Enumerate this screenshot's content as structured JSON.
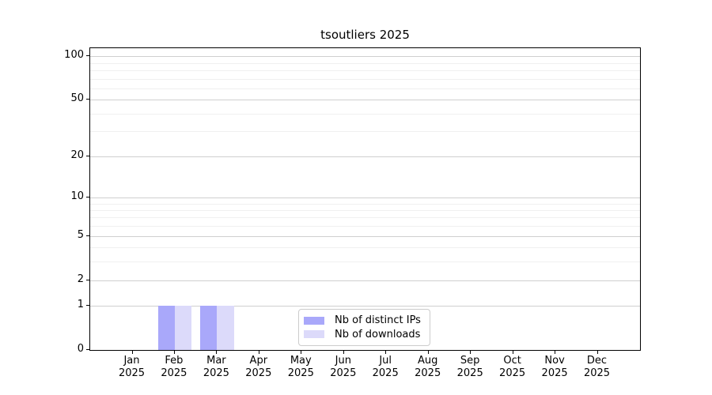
{
  "title": "tsoutliers 2025",
  "chart_data": {
    "type": "bar",
    "title": "tsoutliers 2025",
    "x_categories": [
      "Jan",
      "Feb",
      "Mar",
      "Apr",
      "May",
      "Jun",
      "Jul",
      "Aug",
      "Sep",
      "Oct",
      "Nov",
      "Dec"
    ],
    "x_year": "2025",
    "series": [
      {
        "name": "Nb of distinct IPs",
        "color": "#a9a8fa",
        "values": [
          0,
          1,
          1,
          0,
          0,
          0,
          0,
          0,
          0,
          0,
          0,
          0
        ]
      },
      {
        "name": "Nb of downloads",
        "color": "#dcdafa",
        "values": [
          0,
          1,
          1,
          0,
          0,
          0,
          0,
          0,
          0,
          0,
          0,
          0
        ]
      }
    ],
    "yticks": [
      0,
      1,
      2,
      5,
      10,
      20,
      50,
      100
    ],
    "minor_yticks": [
      3,
      4,
      6,
      7,
      8,
      9,
      30,
      40,
      60,
      70,
      80,
      90
    ],
    "ylim": [
      0,
      113.5
    ],
    "xlim": [
      -1,
      12
    ],
    "y_scale": "log1p",
    "bar_width_data_units": 0.4,
    "bar_group_offsets": [
      -0.2,
      0.2
    ],
    "grid": "horizontal",
    "legend_position": "inside-bottom-center"
  },
  "legend": {
    "items": [
      {
        "label": "Nb of distinct IPs",
        "swatch_color": "#a9a8fa"
      },
      {
        "label": "Nb of downloads",
        "swatch_color": "#dcdafa"
      }
    ]
  }
}
